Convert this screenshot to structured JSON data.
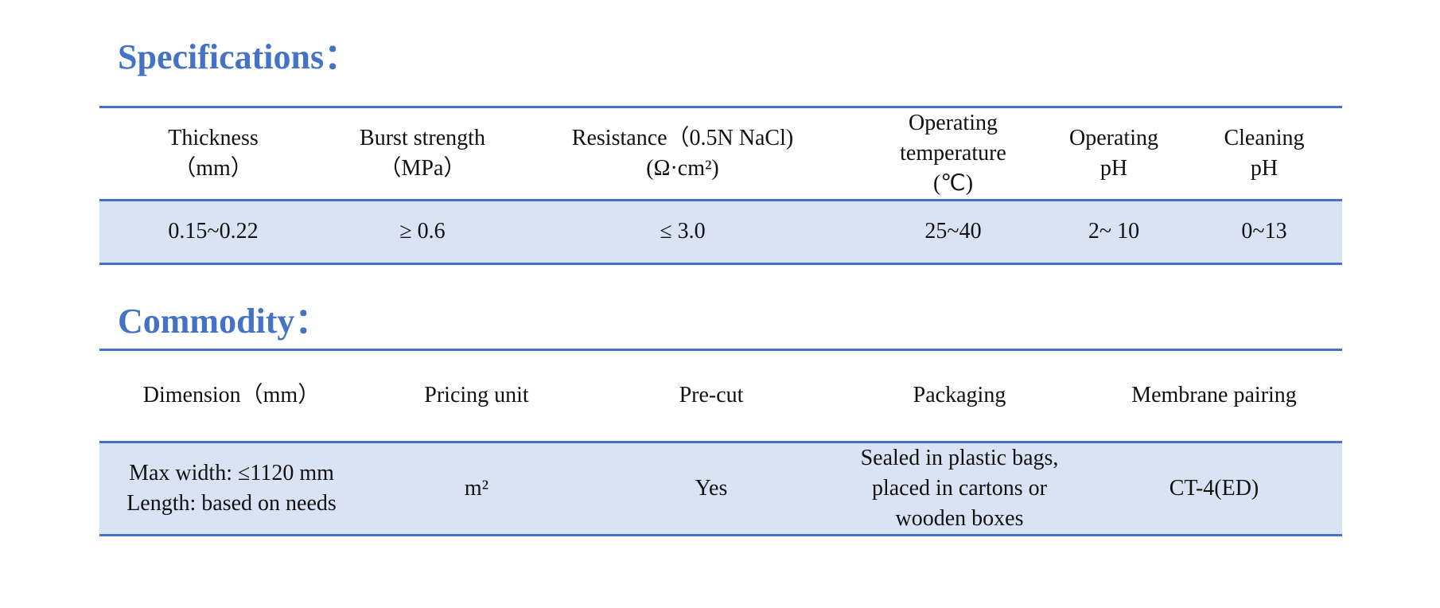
{
  "sections": [
    {
      "title": "Specifications：",
      "table": {
        "header": [
          [
            "Thickness",
            "（mm）"
          ],
          [
            "Burst strength",
            "（MPa）"
          ],
          [
            "Resistance（0.5N NaCl)",
            "(Ω·cm²)"
          ],
          [
            "Operating",
            "temperature",
            "(℃)"
          ],
          [
            "Operating",
            "pH"
          ],
          [
            "Cleaning",
            "pH"
          ]
        ],
        "rows": [
          [
            [
              "0.15~0.22"
            ],
            [
              "≥ 0.6"
            ],
            [
              "≤ 3.0"
            ],
            [
              "25~40"
            ],
            [
              "2~ 10"
            ],
            [
              "0~13"
            ]
          ]
        ]
      }
    },
    {
      "title": "Commodity：",
      "table": {
        "header": [
          [
            "Dimension（mm）"
          ],
          [
            "Pricing unit"
          ],
          [
            "Pre-cut"
          ],
          [
            "Packaging"
          ],
          [
            "Membrane pairing"
          ]
        ],
        "rows": [
          [
            [
              "Max width: ≤1120 mm",
              "Length: based on needs"
            ],
            [
              "m²"
            ],
            [
              "Yes"
            ],
            [
              "Sealed in plastic bags,",
              "placed in cartons or",
              "wooden boxes"
            ],
            [
              "CT-4(ED)"
            ]
          ]
        ]
      }
    }
  ]
}
